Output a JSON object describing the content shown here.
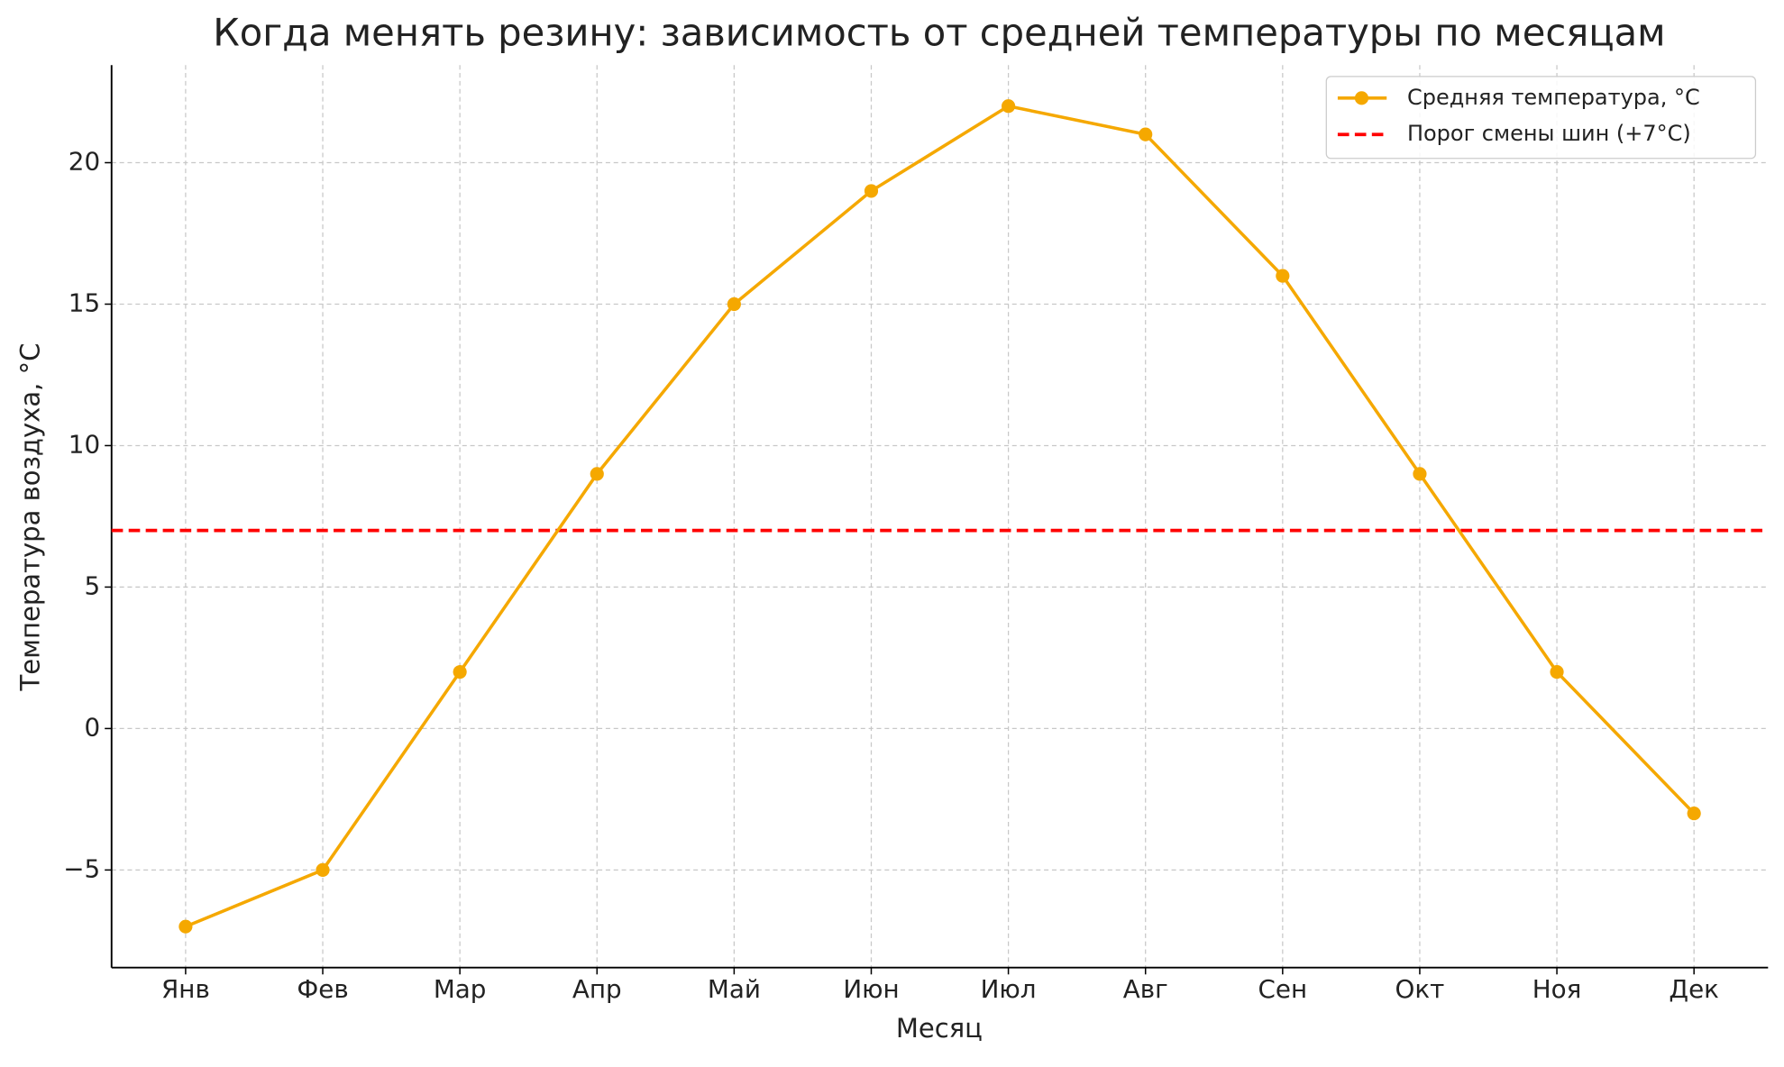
{
  "chart_data": {
    "type": "line",
    "title": "Когда менять резину: зависимость от средней температуры по месяцам",
    "x_label": "Месяц",
    "y_label": "Температура воздуха, °C",
    "categories": [
      "Янв",
      "Фев",
      "Мар",
      "Апр",
      "Май",
      "Июн",
      "Июл",
      "Авг",
      "Сен",
      "Окт",
      "Ноя",
      "Дек"
    ],
    "series": [
      {
        "name": "Средняя температура, °C",
        "color": "#f5a800",
        "values": [
          -7,
          -5,
          2,
          9,
          15,
          19,
          22,
          21,
          16,
          9,
          2,
          -3
        ]
      }
    ],
    "threshold": {
      "name": "Порог смены шин (+7°C)",
      "value": 7,
      "color": "#ff0000"
    },
    "ylim": [
      -8.45,
      23.45
    ],
    "yticks": [
      {
        "value": -5,
        "label": "−5"
      },
      0,
      5,
      10,
      15,
      20
    ],
    "grid": true,
    "legend": "upper right"
  }
}
